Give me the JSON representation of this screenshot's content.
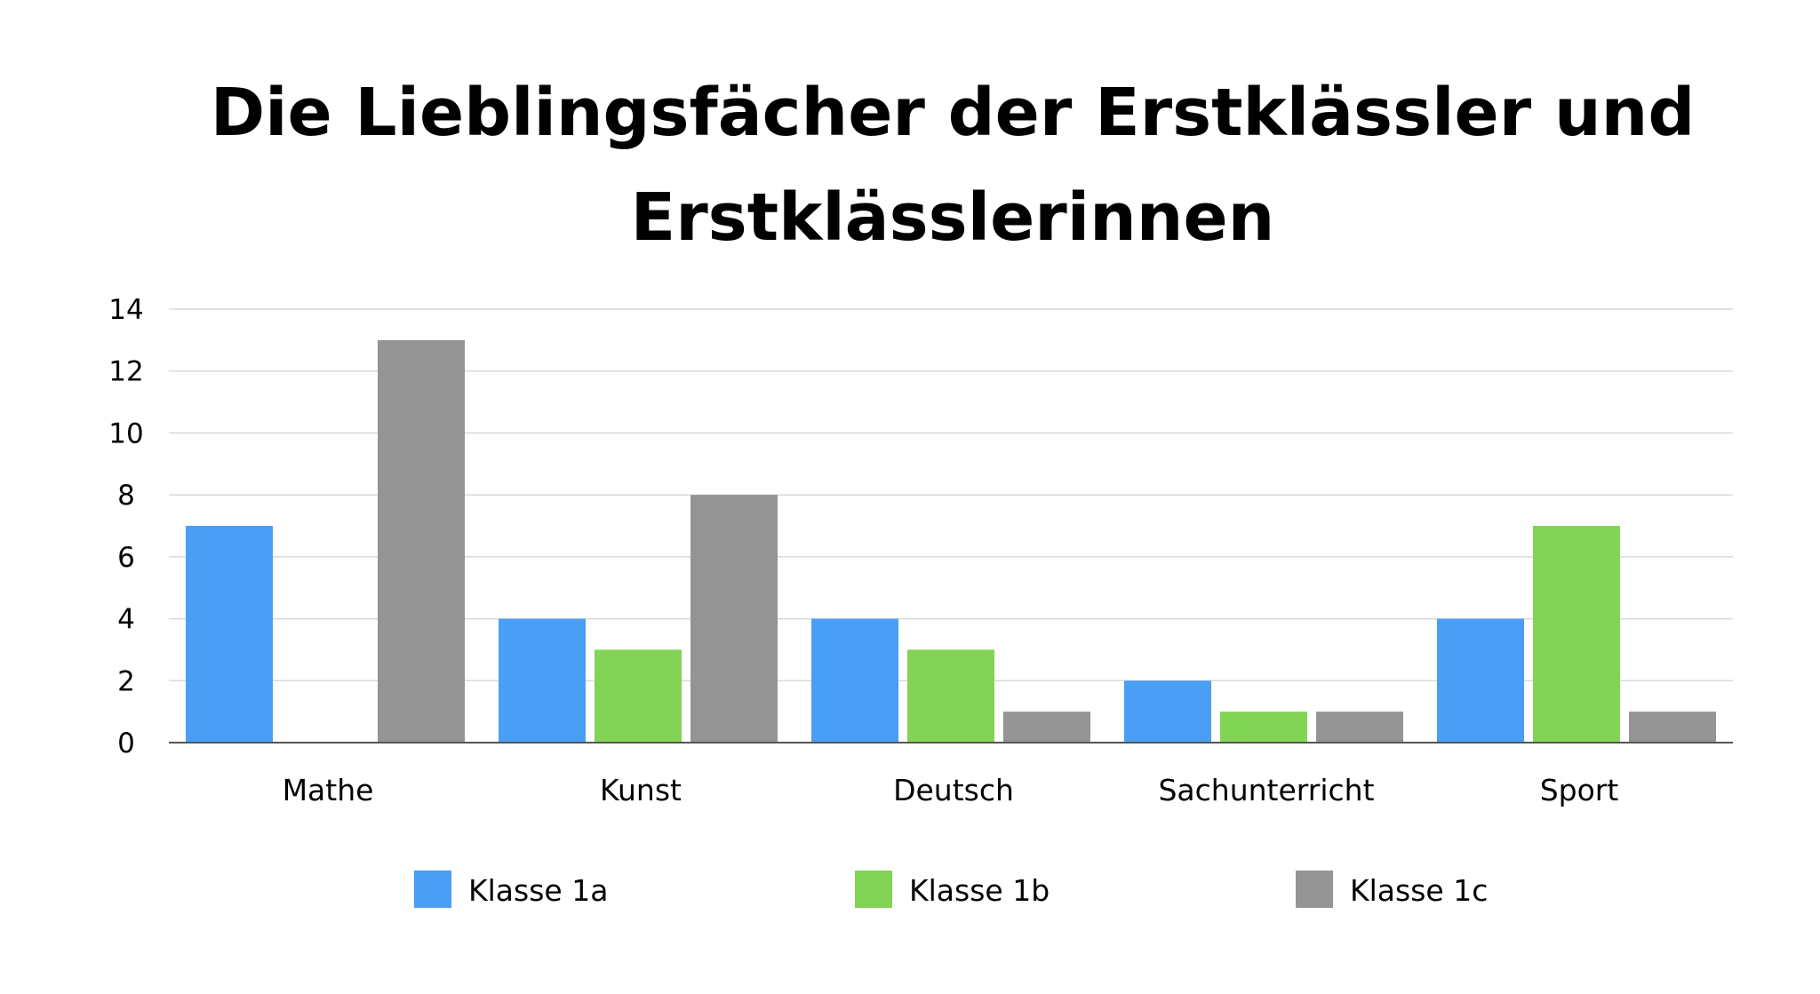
{
  "chart_data": {
    "type": "bar",
    "title_lines": [
      "Die Lieblingsfächer der Erstklässler und",
      "Erstklässlerinnen"
    ],
    "categories": [
      "Mathe",
      "Kunst",
      "Deutsch",
      "Sachunterricht",
      "Sport"
    ],
    "series": [
      {
        "name": "Klasse 1a",
        "color": "#4A9FF5",
        "values": [
          7,
          4,
          4,
          2,
          4
        ]
      },
      {
        "name": "Klasse 1b",
        "color": "#82D455",
        "values": [
          0,
          3,
          3,
          1,
          7
        ]
      },
      {
        "name": "Klasse 1c",
        "color": "#949494",
        "values": [
          13,
          8,
          1,
          1,
          1
        ]
      }
    ],
    "ylim": [
      0,
      14
    ],
    "yticks": [
      "0",
      "2",
      "4",
      "6",
      "8",
      "10",
      "12",
      "14"
    ],
    "grid": true,
    "legend_position": "bottom"
  }
}
